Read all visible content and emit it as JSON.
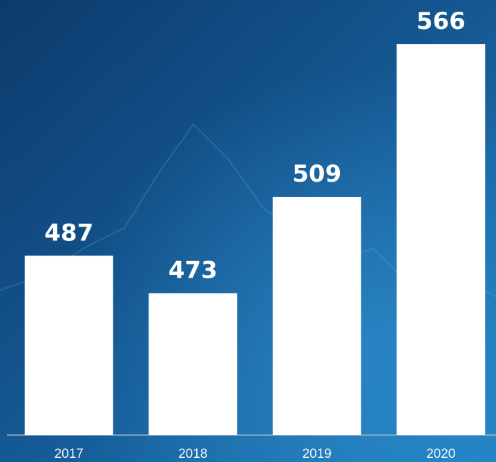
{
  "chart_data": {
    "type": "bar",
    "categories": [
      "2017",
      "2018",
      "2019",
      "2020"
    ],
    "values": [
      487,
      473,
      509,
      566
    ],
    "color": "#ffffff",
    "ylim": [
      420,
      582
    ]
  }
}
